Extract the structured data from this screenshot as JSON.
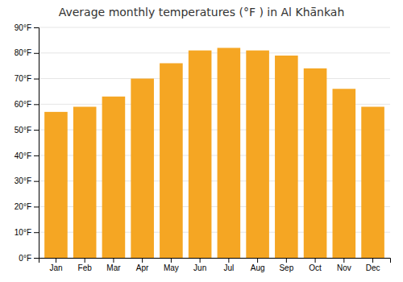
{
  "chart_data": {
    "type": "bar",
    "title": "Average monthly temperatures (°F ) in Al Khā̈nkah",
    "categories": [
      "Jan",
      "Feb",
      "Mar",
      "Apr",
      "May",
      "Jun",
      "Jul",
      "Aug",
      "Sep",
      "Oct",
      "Nov",
      "Dec"
    ],
    "values": [
      57,
      59,
      63,
      70,
      76,
      81,
      82,
      81,
      79,
      74,
      66,
      59
    ],
    "color": "#F5A623",
    "ylim": [
      0,
      90
    ],
    "yticks": [
      {
        "value": 0,
        "label": "0°F"
      },
      {
        "value": 10,
        "label": "10°F"
      },
      {
        "value": 20,
        "label": "20°F"
      },
      {
        "value": 30,
        "label": "30°F"
      },
      {
        "value": 40,
        "label": "40°F"
      },
      {
        "value": 50,
        "label": "50°F"
      },
      {
        "value": 60,
        "label": "60°F"
      },
      {
        "value": 70,
        "label": "70°F"
      },
      {
        "value": 80,
        "label": "80°F"
      },
      {
        "value": 90,
        "label": "90°F"
      }
    ],
    "grid": true
  }
}
